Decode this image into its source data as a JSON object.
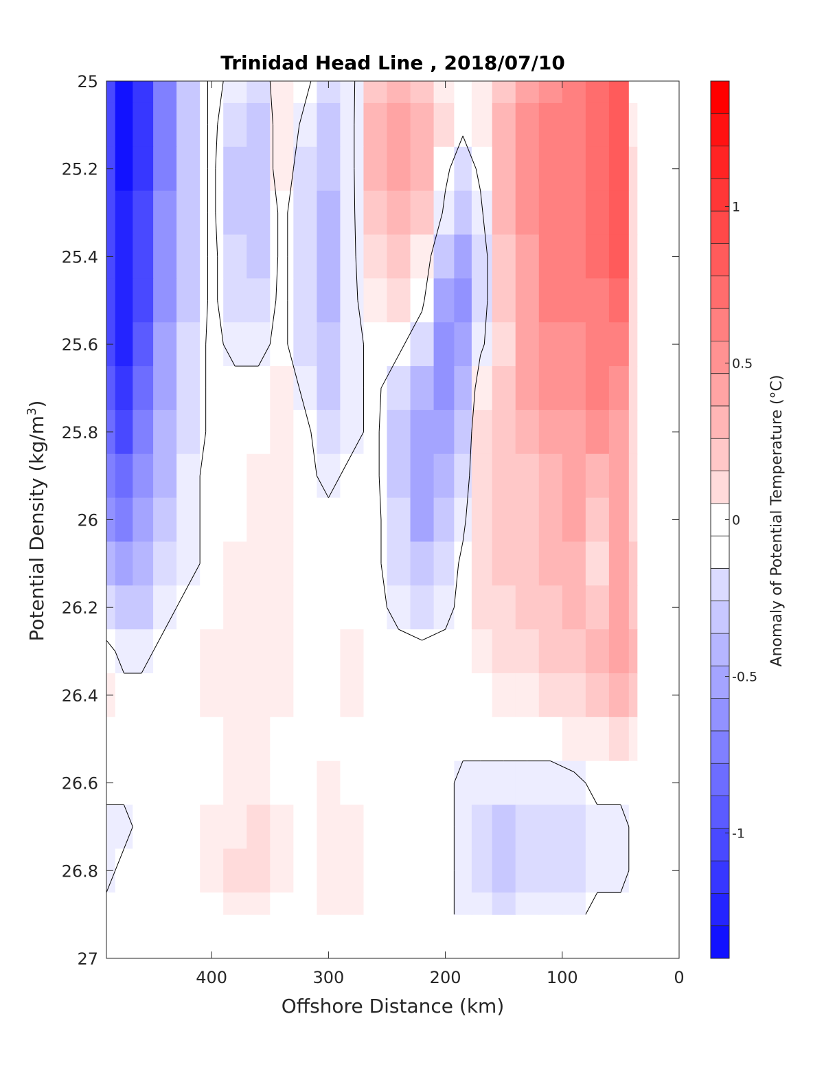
{
  "chart_data": {
    "type": "heatmap",
    "title": "Trinidad Head Line , 2018/07/10",
    "xlabel": "Offshore Distance (km)",
    "ylabel_main": "Potential Density (kg/m",
    "ylabel_sup": "3",
    "ylabel_tail": ")",
    "colorbar_label": "Anomaly of Potential Temperature (°C)",
    "xlim": [
      490,
      0
    ],
    "x_reversed": true,
    "ylim": [
      25,
      27
    ],
    "y_reversed": true,
    "x_ticks": [
      400,
      300,
      200,
      100,
      0
    ],
    "x_tick_labels": [
      "400",
      "300",
      "200",
      "100",
      "0"
    ],
    "y_ticks": [
      25,
      25.2,
      25.4,
      25.6,
      25.8,
      26,
      26.2,
      26.4,
      26.6,
      26.8,
      27
    ],
    "y_tick_labels": [
      "25",
      "25.2",
      "25.4",
      "25.6",
      "25.8",
      "26",
      "26.2",
      "26.4",
      "26.6",
      "26.8",
      "27"
    ],
    "colorbar": {
      "min": -1.4,
      "max": 1.4,
      "step": 0.1,
      "ticks": [
        1,
        0.5,
        0,
        -0.5,
        -1
      ],
      "tick_labels": [
        "1",
        "0.5",
        "0",
        "-0.5",
        "-1"
      ],
      "neg_color": "#0000ff",
      "pos_color": "#ff0000"
    },
    "data_extent": {
      "x_range": [
        490,
        36
      ],
      "y_range": [
        25,
        26.9
      ]
    },
    "anomaly_grid": {
      "x": [
        490,
        475,
        460,
        440,
        420,
        400,
        380,
        360,
        340,
        320,
        300,
        280,
        260,
        240,
        220,
        200,
        185,
        170,
        150,
        130,
        110,
        90,
        70,
        50,
        36
      ],
      "y": [
        25.0,
        25.1,
        25.2,
        25.3,
        25.4,
        25.5,
        25.6,
        25.7,
        25.8,
        25.9,
        26.0,
        26.1,
        26.2,
        26.3,
        26.4,
        26.5,
        26.6,
        26.7,
        26.8,
        26.9
      ],
      "values": [
        [
          -1.0,
          -1.3,
          -1.1,
          -0.7,
          -0.3,
          0.0,
          -0.1,
          -0.2,
          0.1,
          0.0,
          -0.2,
          -0.1,
          0.3,
          0.4,
          0.3,
          0.1,
          0.0,
          0.1,
          0.3,
          0.5,
          0.6,
          0.7,
          0.8,
          0.9,
          0.0
        ],
        [
          -1.0,
          -1.3,
          -1.1,
          -0.7,
          -0.3,
          0.0,
          -0.2,
          -0.3,
          0.1,
          -0.1,
          -0.3,
          -0.1,
          0.4,
          0.5,
          0.4,
          0.2,
          0.0,
          0.1,
          0.4,
          0.6,
          0.7,
          0.7,
          0.8,
          0.9,
          0.1
        ],
        [
          -1.0,
          -1.3,
          -1.1,
          -0.7,
          -0.3,
          0.0,
          -0.3,
          -0.3,
          0.1,
          -0.2,
          -0.3,
          -0.1,
          0.4,
          0.5,
          0.4,
          0.0,
          -0.2,
          0.0,
          0.4,
          0.6,
          0.7,
          0.7,
          0.8,
          0.9,
          0.2
        ],
        [
          -1.0,
          -1.2,
          -1.0,
          -0.6,
          -0.3,
          0.0,
          -0.3,
          -0.3,
          0.0,
          -0.2,
          -0.4,
          -0.1,
          0.3,
          0.4,
          0.3,
          -0.1,
          -0.3,
          -0.1,
          0.4,
          0.6,
          0.7,
          0.7,
          0.8,
          0.9,
          0.2
        ],
        [
          -1.0,
          -1.2,
          -1.0,
          -0.6,
          -0.3,
          0.0,
          -0.2,
          -0.3,
          0.0,
          -0.2,
          -0.4,
          -0.1,
          0.2,
          0.3,
          0.1,
          -0.3,
          -0.5,
          -0.2,
          0.3,
          0.5,
          0.7,
          0.7,
          0.8,
          0.9,
          0.2
        ],
        [
          -1.0,
          -1.2,
          -1.0,
          -0.6,
          -0.3,
          0.0,
          -0.2,
          -0.2,
          0.0,
          -0.2,
          -0.4,
          -0.1,
          0.1,
          0.2,
          0.0,
          -0.5,
          -0.6,
          -0.2,
          0.3,
          0.5,
          0.7,
          0.7,
          0.7,
          0.8,
          0.2
        ],
        [
          -1.0,
          -1.2,
          -0.9,
          -0.5,
          -0.2,
          0.0,
          -0.1,
          -0.1,
          0.0,
          -0.2,
          -0.3,
          -0.1,
          0.0,
          0.0,
          -0.2,
          -0.6,
          -0.5,
          -0.1,
          0.2,
          0.5,
          0.6,
          0.6,
          0.7,
          0.7,
          0.2
        ],
        [
          -0.9,
          -1.1,
          -0.8,
          -0.5,
          -0.2,
          0.0,
          0.0,
          0.0,
          0.1,
          -0.1,
          -0.3,
          -0.1,
          0.0,
          -0.2,
          -0.4,
          -0.6,
          -0.4,
          0.1,
          0.3,
          0.5,
          0.6,
          0.6,
          0.7,
          0.6,
          0.2
        ],
        [
          -0.8,
          -1.0,
          -0.7,
          -0.4,
          -0.2,
          0.0,
          0.0,
          0.0,
          0.1,
          0.0,
          -0.2,
          -0.1,
          0.0,
          -0.3,
          -0.5,
          -0.5,
          -0.3,
          0.2,
          0.3,
          0.4,
          0.5,
          0.5,
          0.6,
          0.5,
          0.2
        ],
        [
          -0.7,
          -0.8,
          -0.6,
          -0.4,
          -0.1,
          0.0,
          0.0,
          0.1,
          0.1,
          0.0,
          -0.1,
          0.0,
          0.0,
          -0.3,
          -0.5,
          -0.4,
          -0.2,
          0.2,
          0.3,
          0.3,
          0.4,
          0.5,
          0.4,
          0.5,
          0.2
        ],
        [
          -0.6,
          -0.7,
          -0.5,
          -0.3,
          -0.1,
          0.0,
          0.0,
          0.1,
          0.1,
          0.0,
          0.0,
          0.0,
          0.0,
          -0.2,
          -0.5,
          -0.3,
          -0.1,
          0.2,
          0.3,
          0.3,
          0.4,
          0.5,
          0.3,
          0.5,
          0.2
        ],
        [
          -0.4,
          -0.5,
          -0.4,
          -0.2,
          -0.1,
          0.0,
          0.1,
          0.1,
          0.1,
          0.0,
          0.0,
          0.0,
          0.0,
          -0.2,
          -0.3,
          -0.2,
          0.0,
          0.2,
          0.3,
          0.3,
          0.4,
          0.4,
          0.2,
          0.5,
          0.3
        ],
        [
          -0.2,
          -0.3,
          -0.3,
          -0.1,
          0.0,
          0.0,
          0.1,
          0.1,
          0.1,
          0.0,
          0.0,
          0.0,
          0.0,
          -0.1,
          -0.2,
          -0.1,
          0.0,
          0.2,
          0.2,
          0.3,
          0.3,
          0.4,
          0.3,
          0.5,
          0.3
        ],
        [
          0.0,
          -0.1,
          -0.1,
          0.0,
          0.0,
          0.1,
          0.1,
          0.1,
          0.1,
          0.0,
          0.0,
          0.1,
          0.0,
          0.0,
          0.0,
          0.0,
          0.0,
          0.1,
          0.2,
          0.2,
          0.3,
          0.3,
          0.4,
          0.5,
          0.4
        ],
        [
          0.1,
          0.0,
          0.0,
          0.0,
          0.0,
          0.1,
          0.1,
          0.1,
          0.1,
          0.0,
          0.0,
          0.1,
          0.0,
          0.0,
          0.0,
          0.0,
          0.0,
          0.0,
          0.1,
          0.1,
          0.2,
          0.2,
          0.3,
          0.4,
          0.3
        ],
        [
          0.0,
          0.0,
          0.0,
          0.0,
          0.0,
          0.0,
          0.1,
          0.1,
          0.0,
          0.0,
          0.0,
          0.0,
          0.0,
          0.0,
          0.0,
          0.0,
          0.0,
          0.0,
          0.0,
          0.0,
          0.0,
          0.1,
          0.1,
          0.2,
          0.1
        ],
        [
          0.0,
          0.0,
          0.0,
          0.0,
          0.0,
          0.0,
          0.1,
          0.1,
          0.0,
          0.0,
          0.1,
          0.0,
          0.0,
          0.0,
          0.0,
          0.0,
          -0.1,
          -0.1,
          -0.1,
          -0.1,
          -0.1,
          -0.1,
          0.0,
          0.0,
          0.0
        ],
        [
          -0.1,
          -0.1,
          0.0,
          0.0,
          0.0,
          0.1,
          0.1,
          0.2,
          0.1,
          0.0,
          0.1,
          0.1,
          0.0,
          0.0,
          0.0,
          0.0,
          -0.1,
          -0.2,
          -0.3,
          -0.2,
          -0.2,
          -0.2,
          -0.1,
          -0.1,
          0.0
        ],
        [
          -0.1,
          0.0,
          0.0,
          0.0,
          0.0,
          0.1,
          0.2,
          0.2,
          0.1,
          0.0,
          0.1,
          0.1,
          0.0,
          0.0,
          0.0,
          0.0,
          -0.1,
          -0.2,
          -0.3,
          -0.2,
          -0.2,
          -0.2,
          -0.1,
          -0.1,
          0.0
        ],
        [
          0.0,
          0.0,
          0.0,
          0.0,
          0.0,
          0.0,
          0.1,
          0.1,
          0.0,
          0.0,
          0.1,
          0.1,
          0.0,
          0.0,
          0.0,
          0.0,
          -0.1,
          -0.1,
          -0.2,
          -0.1,
          -0.1,
          -0.1,
          0.0,
          0.0,
          0.0
        ]
      ]
    }
  }
}
